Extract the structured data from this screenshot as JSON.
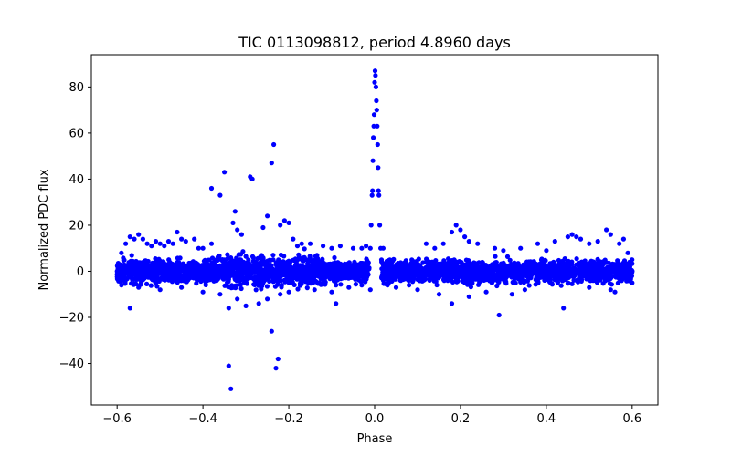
{
  "chart_data": {
    "type": "scatter",
    "title": "TIC 0113098812, period 4.8960 days",
    "xlabel": "Phase",
    "ylabel": "Normalized PDC flux",
    "xlim": [
      -0.66,
      0.66
    ],
    "ylim": [
      -58,
      94
    ],
    "xticks": [
      -0.6,
      -0.4,
      -0.2,
      0.0,
      0.2,
      0.4,
      0.6
    ],
    "xtick_labels": [
      "−0.6",
      "−0.4",
      "−0.2",
      "0.0",
      "0.2",
      "0.4",
      "0.6"
    ],
    "yticks": [
      -40,
      -20,
      0,
      20,
      40,
      60,
      80
    ],
    "ytick_labels": [
      "−40",
      "−20",
      "0",
      "20",
      "40",
      "60",
      "80"
    ],
    "grid": false,
    "marker_color": "#0000ff",
    "series": [
      {
        "points": [
          [
            -0.6,
            0
          ],
          [
            -0.59,
            8
          ],
          [
            -0.59,
            -6
          ],
          [
            -0.58,
            12
          ],
          [
            -0.57,
            15
          ],
          [
            -0.57,
            -16
          ],
          [
            -0.56,
            14
          ],
          [
            -0.55,
            16
          ],
          [
            -0.54,
            14
          ],
          [
            -0.53,
            12
          ],
          [
            -0.52,
            11
          ],
          [
            -0.51,
            13
          ],
          [
            -0.5,
            12
          ],
          [
            -0.49,
            11
          ],
          [
            -0.48,
            13
          ],
          [
            -0.47,
            12
          ],
          [
            -0.46,
            17
          ],
          [
            -0.45,
            14
          ],
          [
            -0.44,
            13
          ],
          [
            -0.42,
            14
          ],
          [
            -0.41,
            10
          ],
          [
            -0.4,
            10
          ],
          [
            -0.38,
            12
          ],
          [
            -0.55,
            -7
          ],
          [
            -0.5,
            -8
          ],
          [
            -0.45,
            -7
          ],
          [
            -0.4,
            -9
          ],
          [
            -0.36,
            -10
          ],
          [
            -0.32,
            -12
          ],
          [
            -0.38,
            36
          ],
          [
            -0.36,
            33
          ],
          [
            -0.35,
            43
          ],
          [
            -0.33,
            21
          ],
          [
            -0.325,
            26
          ],
          [
            -0.32,
            18
          ],
          [
            -0.31,
            16
          ],
          [
            -0.29,
            41
          ],
          [
            -0.285,
            40
          ],
          [
            -0.26,
            19
          ],
          [
            -0.25,
            24
          ],
          [
            -0.24,
            47
          ],
          [
            -0.235,
            55
          ],
          [
            -0.22,
            20
          ],
          [
            -0.21,
            22
          ],
          [
            -0.2,
            21
          ],
          [
            -0.19,
            14
          ],
          [
            -0.18,
            11
          ],
          [
            -0.17,
            12
          ],
          [
            -0.34,
            -41
          ],
          [
            -0.335,
            -51
          ],
          [
            -0.24,
            -26
          ],
          [
            -0.23,
            -42
          ],
          [
            -0.225,
            -38
          ],
          [
            -0.34,
            -16
          ],
          [
            -0.3,
            -15
          ],
          [
            -0.27,
            -14
          ],
          [
            -0.25,
            -12
          ],
          [
            -0.22,
            -10
          ],
          [
            -0.2,
            -9
          ],
          [
            -0.15,
            12
          ],
          [
            -0.12,
            11
          ],
          [
            -0.1,
            10
          ],
          [
            -0.09,
            -6
          ],
          [
            -0.08,
            11
          ],
          [
            -0.05,
            10
          ],
          [
            -0.03,
            10
          ],
          [
            -0.02,
            11
          ],
          [
            -0.14,
            -8
          ],
          [
            -0.1,
            -9
          ],
          [
            -0.09,
            -14
          ],
          [
            -0.06,
            -7
          ],
          [
            -0.03,
            -6
          ],
          [
            -0.01,
            -8
          ],
          [
            -0.01,
            10
          ],
          [
            -0.008,
            20
          ],
          [
            -0.006,
            33
          ],
          [
            -0.005,
            35
          ],
          [
            -0.004,
            48
          ],
          [
            -0.003,
            58
          ],
          [
            -0.002,
            63
          ],
          [
            -0.001,
            68
          ],
          [
            0.0,
            82
          ],
          [
            0.001,
            87
          ],
          [
            0.002,
            85
          ],
          [
            0.003,
            80
          ],
          [
            0.004,
            74
          ],
          [
            0.005,
            70
          ],
          [
            0.006,
            63
          ],
          [
            0.007,
            55
          ],
          [
            0.008,
            45
          ],
          [
            0.009,
            35
          ],
          [
            0.01,
            33
          ],
          [
            0.012,
            20
          ],
          [
            0.014,
            10
          ],
          [
            0.016,
            5
          ],
          [
            0.02,
            10
          ],
          [
            0.03,
            -6
          ],
          [
            0.05,
            -7
          ],
          [
            0.08,
            -6
          ],
          [
            0.1,
            -8
          ],
          [
            0.12,
            12
          ],
          [
            0.14,
            10
          ],
          [
            0.15,
            -10
          ],
          [
            0.16,
            12
          ],
          [
            0.18,
            17
          ],
          [
            0.19,
            20
          ],
          [
            0.2,
            18
          ],
          [
            0.21,
            15
          ],
          [
            0.22,
            13
          ],
          [
            0.24,
            12
          ],
          [
            0.18,
            -14
          ],
          [
            0.22,
            -11
          ],
          [
            0.26,
            -9
          ],
          [
            0.28,
            10
          ],
          [
            0.29,
            -19
          ],
          [
            0.3,
            9
          ],
          [
            0.32,
            -10
          ],
          [
            0.34,
            10
          ],
          [
            0.35,
            -8
          ],
          [
            0.38,
            12
          ],
          [
            0.4,
            9
          ],
          [
            0.42,
            13
          ],
          [
            0.44,
            -16
          ],
          [
            0.45,
            15
          ],
          [
            0.46,
            16
          ],
          [
            0.47,
            15
          ],
          [
            0.48,
            14
          ],
          [
            0.5,
            12
          ],
          [
            0.52,
            13
          ],
          [
            0.54,
            18
          ],
          [
            0.55,
            16
          ],
          [
            0.56,
            -9
          ],
          [
            0.57,
            12
          ],
          [
            0.58,
            14
          ],
          [
            0.59,
            8
          ],
          [
            0.6,
            0
          ],
          [
            0.6,
            -5
          ],
          [
            0.5,
            -7
          ],
          [
            0.55,
            -8
          ]
        ]
      }
    ],
    "band": {
      "note_hidden": true
    }
  }
}
